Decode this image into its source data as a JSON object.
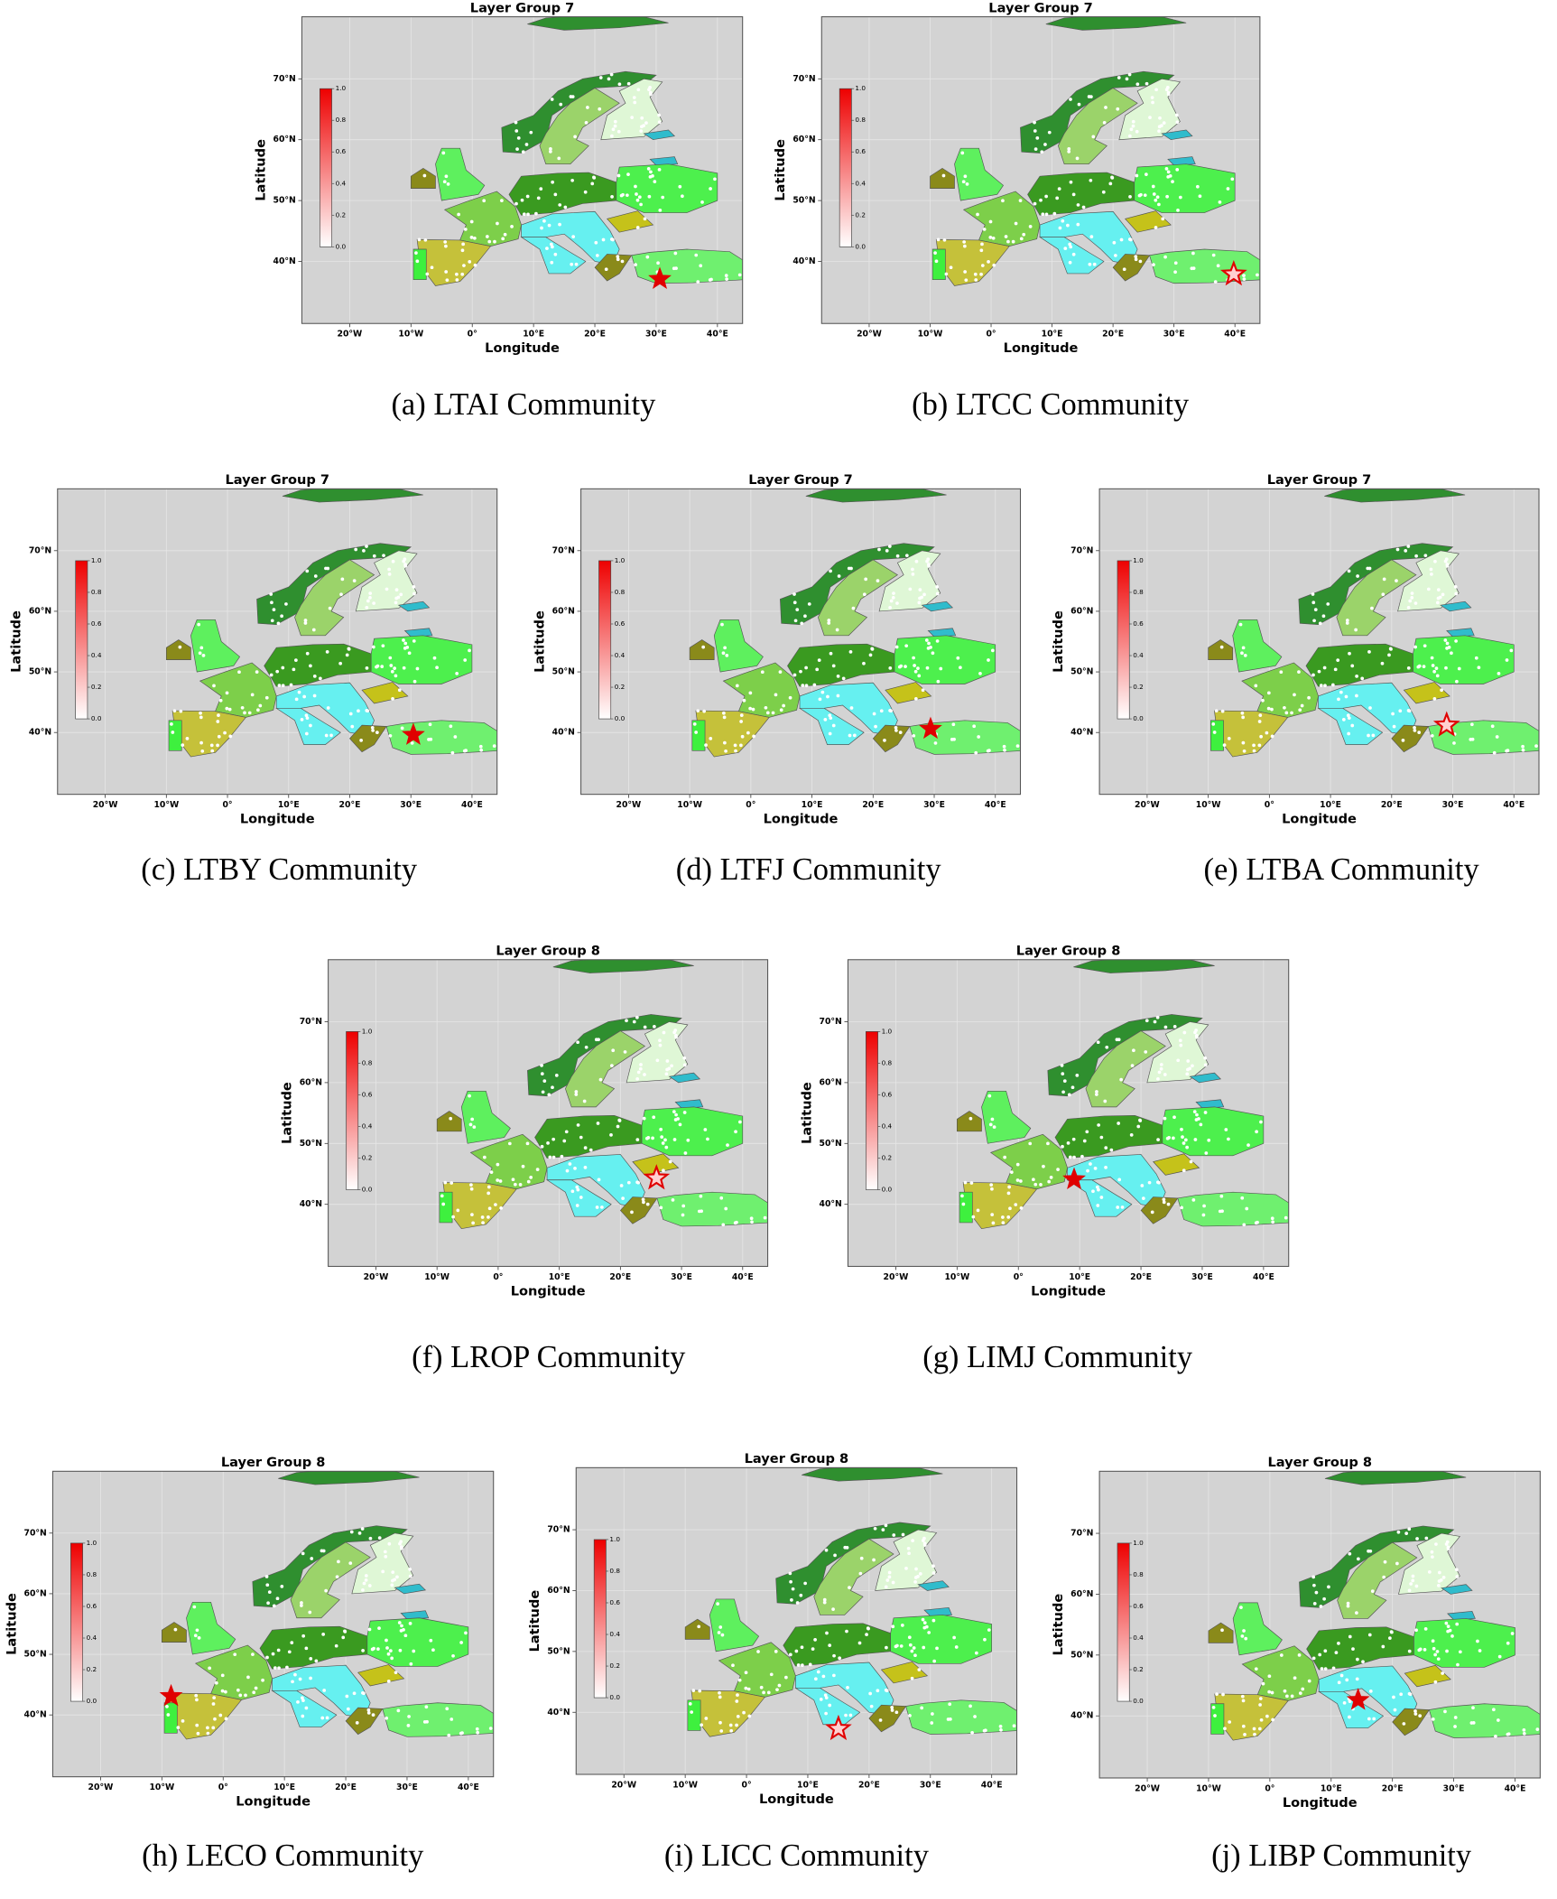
{
  "axes": {
    "xlabel": "Longitude",
    "ylabel": "Latitude",
    "xlim": [
      -27.8,
      44.1
    ],
    "ylim": [
      29.8,
      80.2
    ],
    "grid": true,
    "xticks": [
      {
        "value": -20,
        "label": "20°W"
      },
      {
        "value": -10,
        "label": "10°W"
      },
      {
        "value": 0,
        "label": "0°"
      },
      {
        "value": 10,
        "label": "10°E"
      },
      {
        "value": 20,
        "label": "20°E"
      },
      {
        "value": 30,
        "label": "30°E"
      },
      {
        "value": 40,
        "label": "40°E"
      }
    ],
    "yticks": [
      {
        "value": 40,
        "label": "40°N"
      },
      {
        "value": 50,
        "label": "50°N"
      },
      {
        "value": 60,
        "label": "60°N"
      },
      {
        "value": 70,
        "label": "70°N"
      }
    ],
    "colorbar_lim": [
      0,
      1
    ],
    "colorbar_ticks": [
      {
        "value": 0,
        "label": "0.0"
      },
      {
        "value": 0.2,
        "label": "0.2"
      },
      {
        "value": 0.4,
        "label": "0.4"
      },
      {
        "value": 0.6,
        "label": "0.6"
      },
      {
        "value": 0.8,
        "label": "0.8"
      },
      {
        "value": 1,
        "label": "1.0"
      }
    ]
  },
  "panels": [
    {
      "title": "Layer Group 7",
      "caption": "(a) LTAI Community",
      "star": {
        "lon": 30.6,
        "lat": 37.1,
        "marker": "filled"
      }
    },
    {
      "title": "Layer Group 7",
      "caption": "(b) LTCC Community",
      "star": {
        "lon": 39.8,
        "lat": 37.9,
        "marker": "hollow"
      }
    },
    {
      "title": "Layer Group 7",
      "caption": "(c) LTBY Community",
      "star": {
        "lon": 30.4,
        "lat": 39.6,
        "marker": "filled"
      }
    },
    {
      "title": "Layer Group 7",
      "caption": "(d) LTFJ Community",
      "star": {
        "lon": 29.4,
        "lat": 40.6,
        "marker": "filled"
      }
    },
    {
      "title": "Layer Group 7",
      "caption": "(e) LTBA Community",
      "star": {
        "lon": 29.0,
        "lat": 41.2,
        "marker": "hollow"
      }
    },
    {
      "title": "Layer Group 8",
      "caption": "(f) LROP Community",
      "star": {
        "lon": 25.9,
        "lat": 44.3,
        "marker": "hollow"
      }
    },
    {
      "title": "Layer Group 8",
      "caption": "(g) LIMJ Community",
      "star": {
        "lon": 9.1,
        "lat": 44.1,
        "marker": "filled"
      }
    },
    {
      "title": "Layer Group 8",
      "caption": "(h) LECO Community",
      "star": {
        "lon": -8.5,
        "lat": 43.1,
        "marker": "filled"
      }
    },
    {
      "title": "Layer Group 8",
      "caption": "(i) LICC Community",
      "star": {
        "lon": 15.0,
        "lat": 37.3,
        "marker": "hollow"
      }
    },
    {
      "title": "Layer Group 8",
      "caption": "(j) LIBP Community",
      "star": {
        "lon": 14.4,
        "lat": 42.6,
        "marker": "filled"
      }
    }
  ]
}
